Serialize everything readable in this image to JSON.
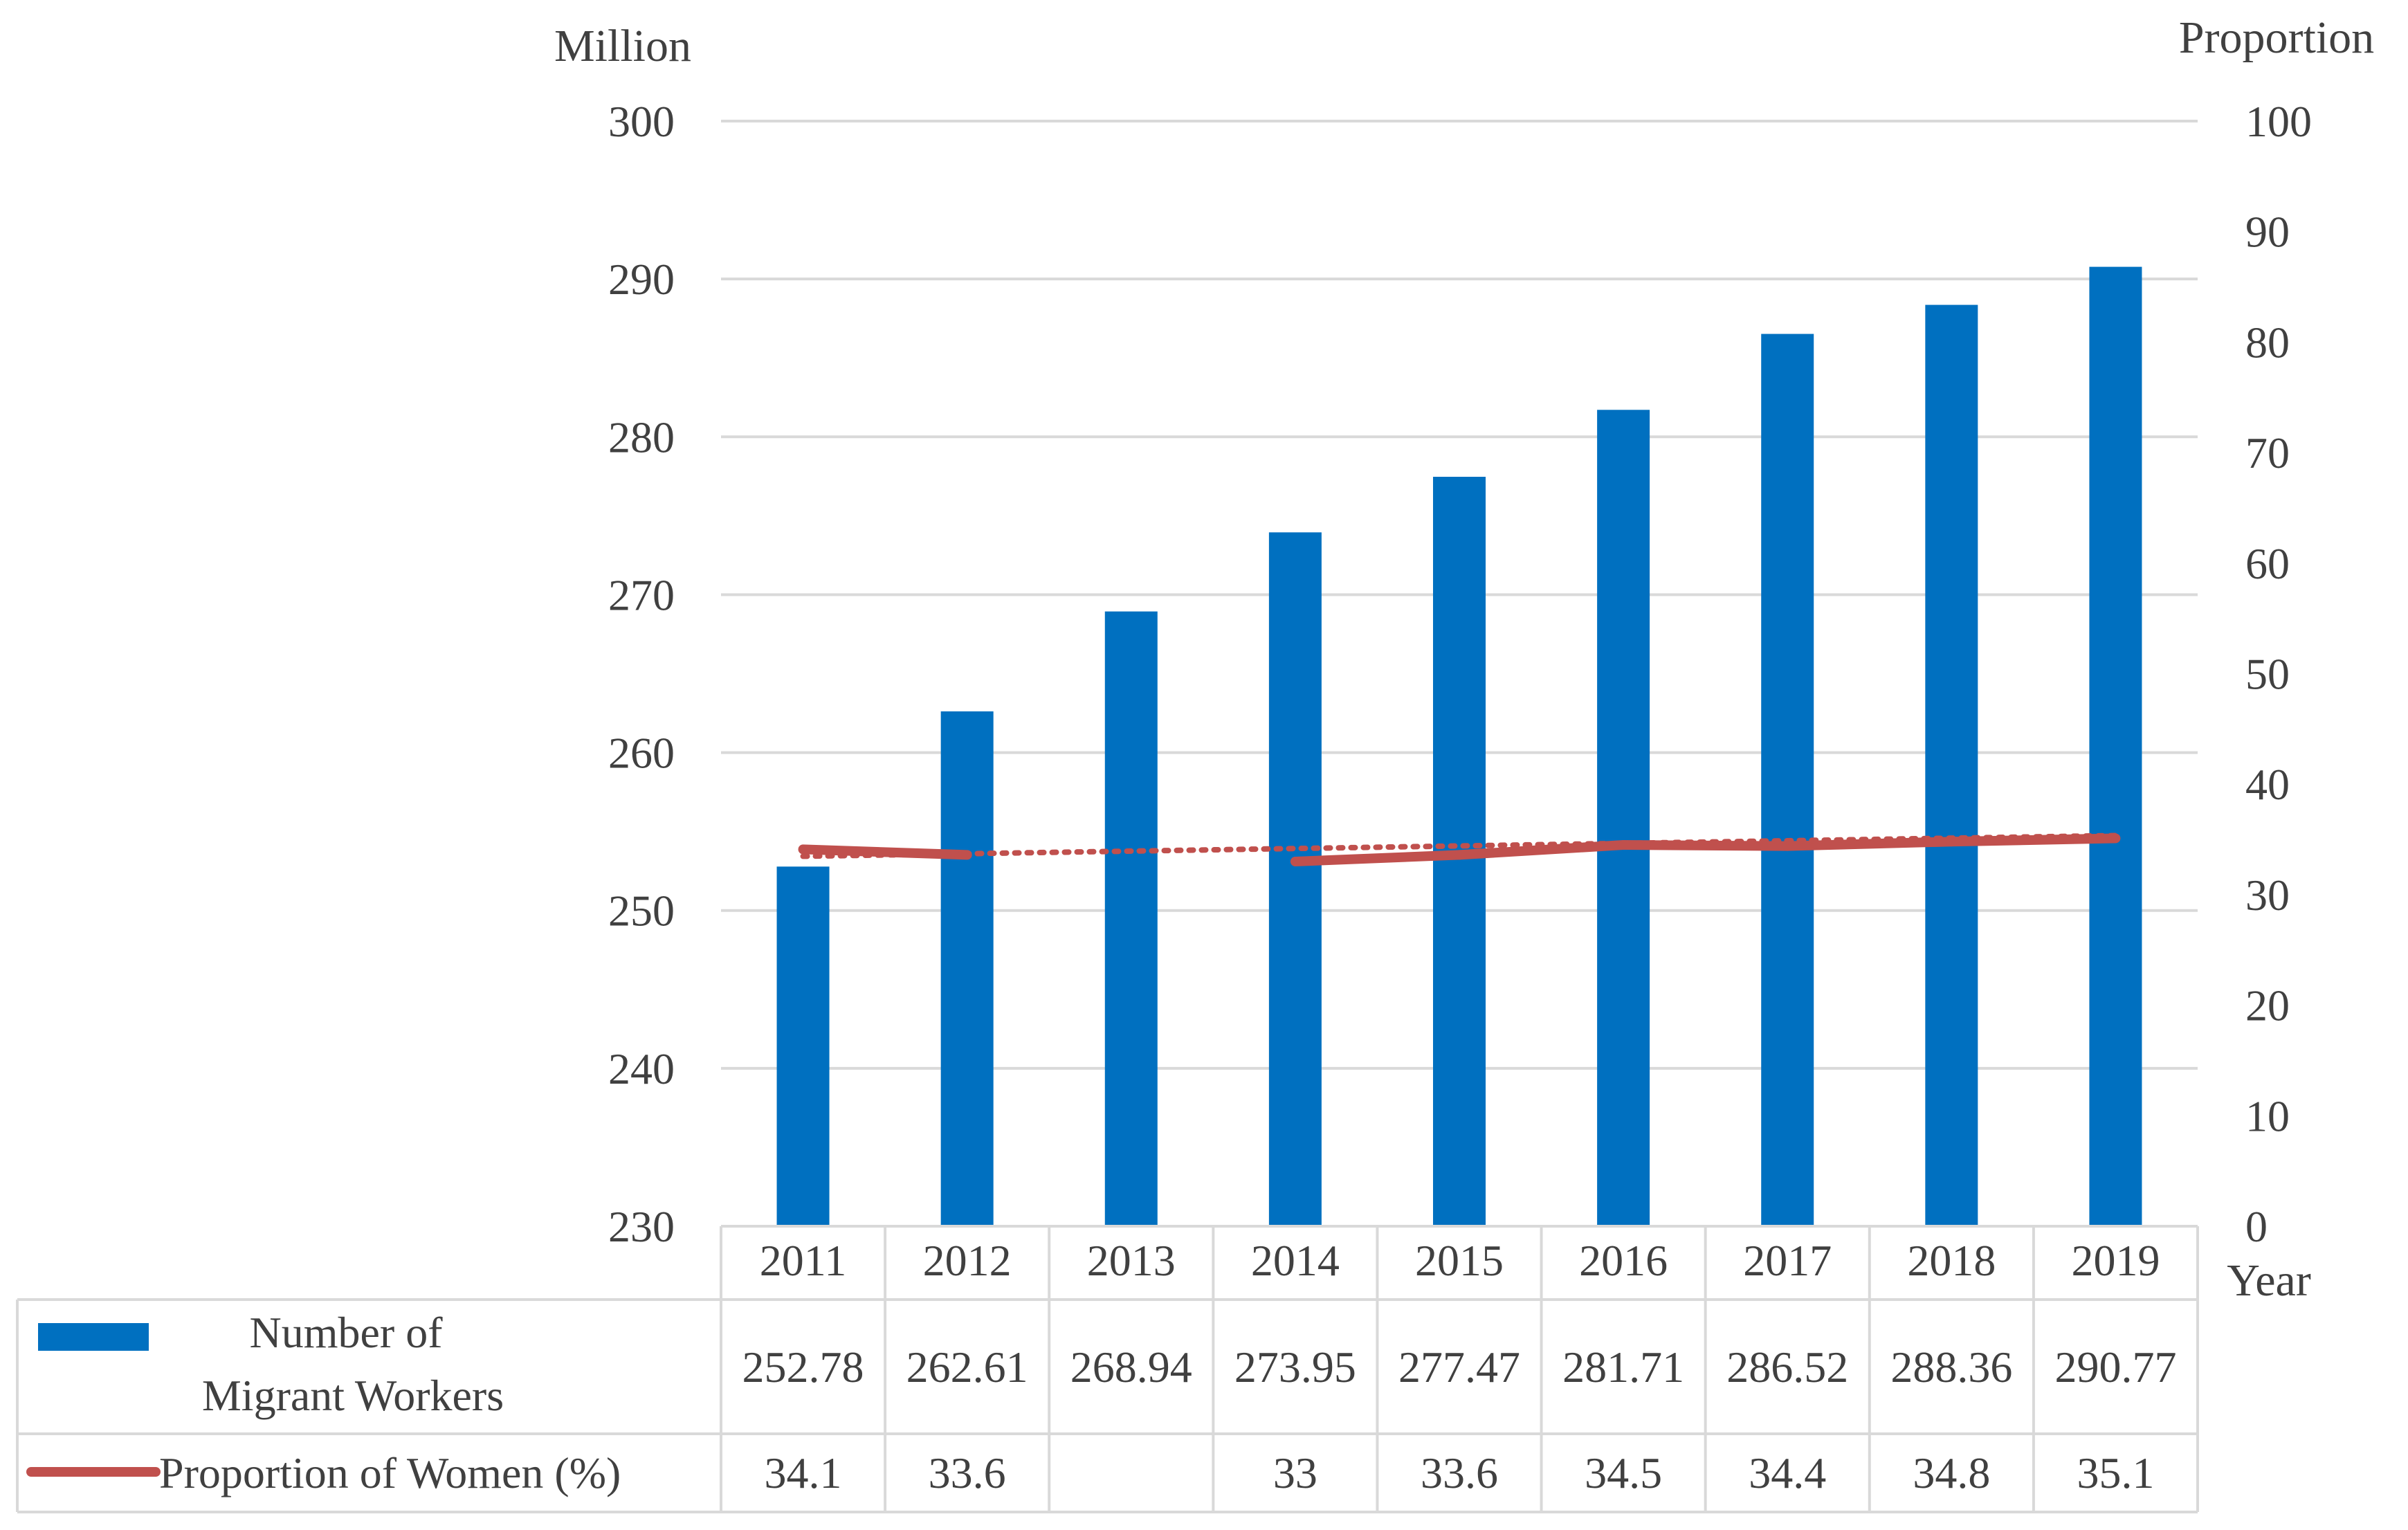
{
  "chart_data": {
    "type": "bar",
    "left_axis": {
      "unit_label": "Million",
      "range": [
        230,
        300
      ],
      "ticks": [
        "230",
        "240",
        "250",
        "260",
        "270",
        "280",
        "290",
        "300"
      ]
    },
    "right_axis": {
      "unit_label": "Proportion",
      "range": [
        0,
        100
      ],
      "ticks": [
        "0",
        "10",
        "20",
        "30",
        "40",
        "50",
        "60",
        "70",
        "80",
        "90",
        "100"
      ]
    },
    "x_axis_label": "Year",
    "categories": [
      "2011",
      "2012",
      "2013",
      "2014",
      "2015",
      "2016",
      "2017",
      "2018",
      "2019"
    ],
    "series": [
      {
        "name": "Number of Migrant Workers",
        "legend_lines": [
          "Number of",
          "Migrant Workers"
        ],
        "type": "bar",
        "axis": "left",
        "color": "#0070C0",
        "values": [
          252.78,
          262.61,
          268.94,
          273.95,
          277.47,
          281.71,
          286.52,
          288.36,
          290.77
        ],
        "labels": [
          "252.78",
          "262.61",
          "268.94",
          "273.95",
          "277.47",
          "281.71",
          "286.52",
          "288.36",
          "290.77"
        ]
      },
      {
        "name": "Proportion of Women (%)",
        "type": "line",
        "axis": "right",
        "color": "#C0504D",
        "values": [
          34.1,
          33.6,
          null,
          33,
          33.6,
          34.5,
          34.4,
          34.8,
          35.1
        ],
        "labels": [
          "34.1",
          "33.6",
          "",
          "33",
          "33.6",
          "34.5",
          "34.4",
          "34.8",
          "35.1"
        ]
      }
    ],
    "grid": true,
    "legend": "data-table-left"
  }
}
